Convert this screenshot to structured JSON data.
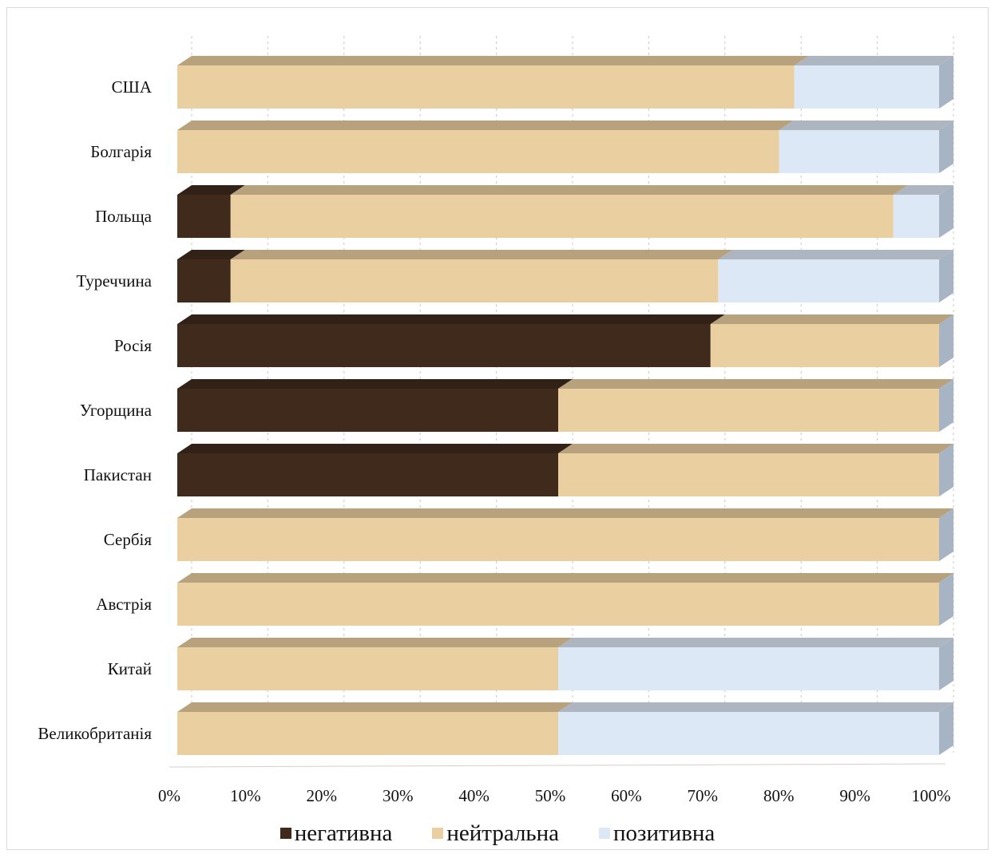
{
  "chart_data": {
    "type": "bar",
    "orientation": "horizontal",
    "stacked": "percent",
    "style": "3d",
    "title": "",
    "xlabel": "",
    "ylabel": "",
    "xlim": [
      0,
      100
    ],
    "x_ticks": [
      "0%",
      "10%",
      "20%",
      "30%",
      "40%",
      "50%",
      "60%",
      "70%",
      "80%",
      "90%",
      "100%"
    ],
    "grid": true,
    "legend_position": "bottom",
    "categories": [
      "США",
      "Болгарія",
      "Польща",
      "Туреччина",
      "Росія",
      "Угорщина",
      "Пакистан",
      "Сербія",
      "Австрія",
      "Китай",
      "Великобританія"
    ],
    "series": [
      {
        "name": "негативна",
        "color": "#3f2a1c",
        "values": [
          0,
          0,
          7,
          7,
          70,
          50,
          50,
          0,
          0,
          0,
          0
        ]
      },
      {
        "name": "нейтральна",
        "color": "#ead0a0",
        "values": [
          81,
          79,
          87,
          64,
          30,
          50,
          50,
          100,
          100,
          50,
          50
        ]
      },
      {
        "name": "позитивна",
        "color": "#dce8f6",
        "values": [
          19,
          21,
          6,
          29,
          0,
          0,
          0,
          0,
          0,
          50,
          50
        ]
      }
    ]
  }
}
